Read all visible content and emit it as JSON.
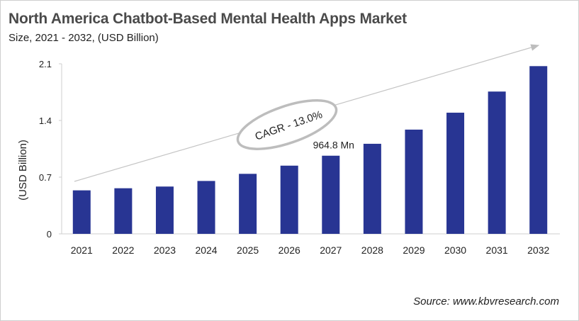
{
  "title": "North America Chatbot-Based  Mental Health Apps Market",
  "subtitle": "Size, 2021 - 2032, (USD Billion)",
  "source": "Source: www.kbvresearch.com",
  "chart_data": {
    "type": "bar",
    "title": "North America Chatbot-Based  Mental Health Apps Market",
    "subtitle": "Size, 2021 - 2032, (USD Billion)",
    "xlabel": "",
    "ylabel": "(USD Billion)",
    "categories": [
      "2021",
      "2022",
      "2023",
      "2024",
      "2025",
      "2026",
      "2027",
      "2028",
      "2029",
      "2030",
      "2031",
      "2032"
    ],
    "values": [
      0.537,
      0.563,
      0.584,
      0.653,
      0.741,
      0.842,
      0.9648,
      1.112,
      1.287,
      1.496,
      1.757,
      2.071
    ],
    "ylim": [
      0,
      2.1
    ],
    "yticks": [
      "0",
      "0.7",
      "1.4",
      "2.1"
    ],
    "grid": false,
    "bar_color": "#283593",
    "annotations": [
      {
        "text": "964.8 Mn",
        "category": "2027"
      },
      {
        "text": "CAGR - 13.0%",
        "shape": "ellipse-on-trend-arrow"
      }
    ]
  }
}
